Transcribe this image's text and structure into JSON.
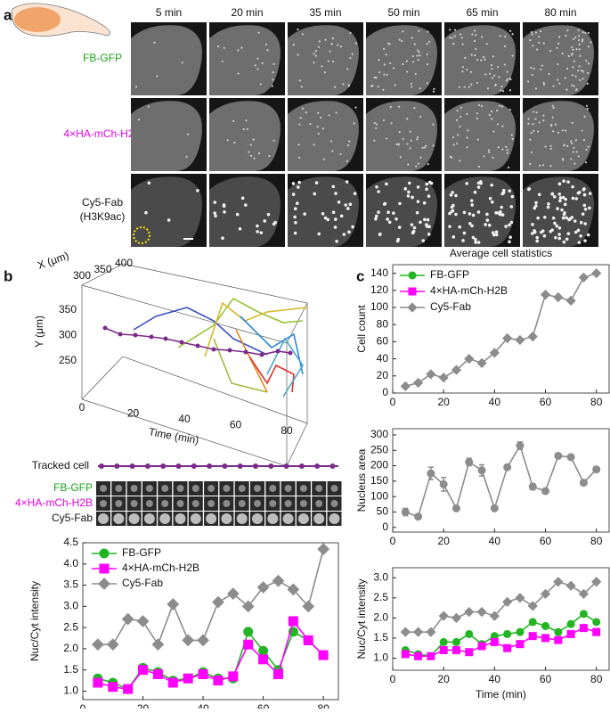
{
  "panel_a": {
    "label": "a",
    "times": [
      "5 min",
      "20 min",
      "35 min",
      "50 min",
      "65 min",
      "80 min"
    ],
    "rows": [
      {
        "name": "FB-GFP",
        "color": "#1aa31a"
      },
      {
        "name": "4×HA-mCh-H2B",
        "color": "#e600e6"
      },
      {
        "name": "Cy5-Fab",
        "sub": "(H3K9ac)",
        "color": "#111111"
      }
    ]
  },
  "panel_b": {
    "label": "b",
    "plot3d": {
      "x_label": "X (μm)",
      "y_label": "Y (μm)",
      "t_label": "Time (min)",
      "xticks": [
        300,
        350,
        400
      ],
      "yticks": [
        250,
        300,
        350
      ],
      "tticks": [
        0,
        20,
        40,
        60,
        80
      ]
    },
    "tracked_cell": "Tracked cell",
    "strip_rows": [
      {
        "name": "FB-GFP",
        "color": "#1aa31a"
      },
      {
        "name": "4×HA-mCh-H2B",
        "color": "#e600e6"
      },
      {
        "name": "Cy5-Fab",
        "color": "#111111"
      }
    ]
  },
  "panel_c": {
    "label": "c"
  },
  "chart_data": [
    {
      "type": "line",
      "xlabel": "Time (min)",
      "ylabel": "Nuc/Cyt intensity",
      "xlim": [
        0,
        85
      ],
      "ylim": [
        0.8,
        4.5
      ],
      "xticks": [
        0,
        20,
        40,
        60,
        80
      ],
      "yticks": [
        {
          "value": 1,
          "label": "1.0"
        },
        1.5,
        {
          "value": 2,
          "label": "2.0"
        },
        2.5,
        {
          "value": 3,
          "label": "3.0"
        },
        3.5,
        {
          "value": 4,
          "label": "4.0"
        },
        4.5
      ],
      "legend": "upper left",
      "x": [
        5,
        10,
        15,
        20,
        25,
        30,
        35,
        40,
        45,
        50,
        55,
        60,
        65,
        70,
        75,
        80
      ],
      "series": [
        {
          "name": "FB-GFP",
          "color": "#22b522",
          "marker": "circle",
          "values": [
            1.3,
            1.2,
            1.05,
            1.55,
            1.45,
            1.25,
            1.3,
            1.45,
            1.3,
            1.3,
            2.4,
            1.95,
            1.5,
            2.4,
            2.2,
            1.85
          ]
        },
        {
          "name": "4×HA-mCh-H2B",
          "color": "#ff00ff",
          "marker": "square",
          "values": [
            1.2,
            1.1,
            1.05,
            1.5,
            1.4,
            1.2,
            1.3,
            1.4,
            1.25,
            1.35,
            2.1,
            1.75,
            1.4,
            2.65,
            2.2,
            1.85
          ]
        },
        {
          "name": "Cy5-Fab",
          "color": "#8c8c8c",
          "marker": "diamond",
          "values": [
            2.1,
            2.1,
            2.7,
            2.65,
            2.1,
            3.05,
            2.2,
            2.2,
            3.1,
            3.3,
            3.0,
            3.45,
            3.6,
            3.4,
            3.0,
            4.35
          ]
        }
      ]
    },
    {
      "type": "line",
      "title": "Average cell statistics",
      "ylabel": "Cell count",
      "xlim": [
        0,
        85
      ],
      "ylim": [
        0,
        150
      ],
      "xticks": [
        0,
        20,
        40,
        60,
        80
      ],
      "yticks": [
        0,
        20,
        40,
        60,
        80,
        100,
        120,
        140
      ],
      "x": [
        5,
        10,
        15,
        20,
        25,
        30,
        35,
        40,
        45,
        50,
        55,
        60,
        65,
        70,
        75,
        80
      ],
      "series": [
        {
          "color": "#8c8c8c",
          "marker": "diamond",
          "values": [
            8,
            12,
            22,
            18,
            27,
            40,
            35,
            47,
            64,
            62,
            66,
            115,
            112,
            108,
            135,
            140
          ]
        }
      ]
    },
    {
      "type": "line",
      "ylabel": "Nucleus area",
      "xlim": [
        0,
        85
      ],
      "ylim": [
        -15,
        320
      ],
      "xticks": [
        0,
        20,
        40,
        60,
        80
      ],
      "yticks": [
        0,
        50,
        100,
        150,
        200,
        250,
        300
      ],
      "x": [
        5,
        10,
        15,
        20,
        25,
        30,
        35,
        40,
        45,
        50,
        55,
        60,
        65,
        70,
        75,
        80
      ],
      "series": [
        {
          "color": "#8c8c8c",
          "marker": "circle",
          "values": [
            50,
            35,
            175,
            140,
            62,
            212,
            185,
            62,
            195,
            265,
            132,
            118,
            232,
            228,
            145,
            188
          ],
          "errors": [
            12,
            5,
            20,
            22,
            5,
            12,
            18,
            5,
            6,
            12,
            10,
            5,
            6,
            6,
            6,
            6
          ]
        }
      ]
    },
    {
      "type": "line",
      "xlabel": "Time (min)",
      "ylabel": "Nuc/Cyt intensity",
      "xlim": [
        0,
        85
      ],
      "ylim": [
        0.7,
        3.25
      ],
      "xticks": [
        0,
        20,
        40,
        60,
        80
      ],
      "yticks": [
        {
          "value": 1,
          "label": "1.0"
        },
        1.5,
        {
          "value": 2,
          "label": "2.0"
        },
        2.5,
        {
          "value": 3,
          "label": "3.0"
        }
      ],
      "legend": "upper left",
      "x": [
        5,
        10,
        15,
        20,
        25,
        30,
        35,
        40,
        45,
        50,
        55,
        60,
        65,
        70,
        75,
        80
      ],
      "series": [
        {
          "name": "FB-GFP",
          "color": "#22b522",
          "marker": "circle",
          "values": [
            1.2,
            1.1,
            1.05,
            1.4,
            1.4,
            1.6,
            1.35,
            1.55,
            1.6,
            1.65,
            1.9,
            1.8,
            1.65,
            1.85,
            2.1,
            1.9
          ]
        },
        {
          "name": "4×HA-mCh-H2B",
          "color": "#ff00ff",
          "marker": "square",
          "values": [
            1.1,
            1.05,
            1.05,
            1.2,
            1.2,
            1.15,
            1.3,
            1.4,
            1.25,
            1.35,
            1.55,
            1.5,
            1.45,
            1.6,
            1.75,
            1.65
          ]
        },
        {
          "name": "Cy5-Fab",
          "color": "#8c8c8c",
          "marker": "diamond",
          "values": [
            1.65,
            1.65,
            1.65,
            2.05,
            2.0,
            2.15,
            2.15,
            2.05,
            2.4,
            2.5,
            2.3,
            2.6,
            2.9,
            2.8,
            2.6,
            2.9
          ]
        }
      ]
    }
  ]
}
